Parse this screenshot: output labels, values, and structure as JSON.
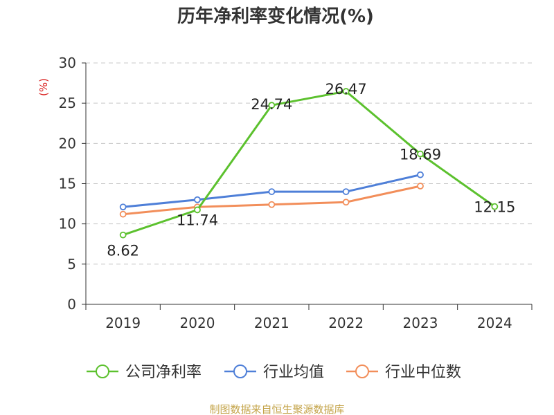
{
  "chart_data": {
    "type": "line",
    "title": "历年净利率变化情况(%)",
    "ylabel": "(%)",
    "categories": [
      "2019",
      "2020",
      "2021",
      "2022",
      "2023",
      "2024"
    ],
    "ylim": [
      0,
      30
    ],
    "yticks": [
      0,
      5,
      10,
      15,
      20,
      25,
      30
    ],
    "grid": true,
    "legend_position": "bottom",
    "series": [
      {
        "name": "公司净利率",
        "color": "#5cc12e",
        "values": [
          8.62,
          11.74,
          24.74,
          26.47,
          18.69,
          12.15
        ],
        "labels": [
          "8.62",
          "11.74",
          "24.74",
          "26.47",
          "18.69",
          "12.15"
        ]
      },
      {
        "name": "行业均值",
        "color": "#4e7fd8",
        "values": [
          12.1,
          13.0,
          14.0,
          14.0,
          16.1,
          null
        ]
      },
      {
        "name": "行业中位数",
        "color": "#f28e5a",
        "values": [
          11.2,
          12.1,
          12.4,
          12.7,
          14.7,
          null
        ]
      }
    ]
  },
  "source": "制图数据来自恒生聚源数据库"
}
